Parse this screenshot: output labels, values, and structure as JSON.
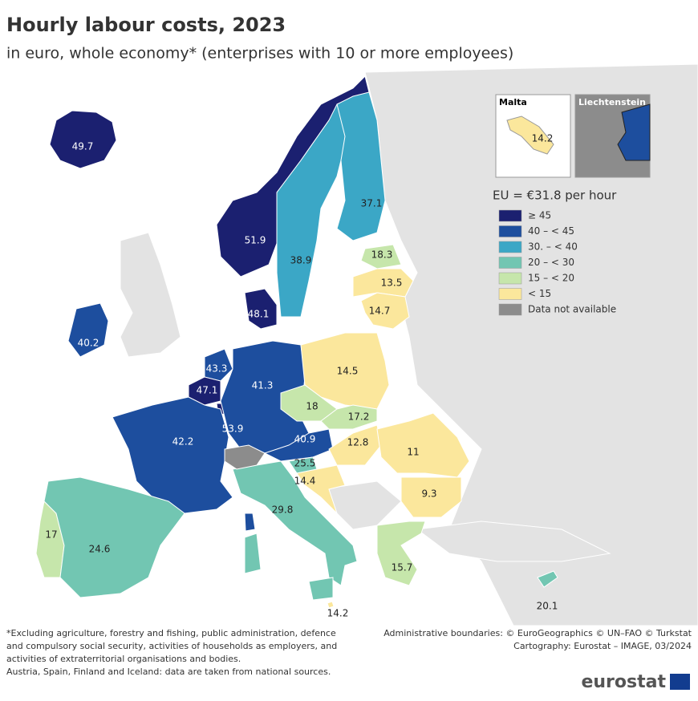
{
  "title": "Hourly labour costs, 2023",
  "subtitle": "in euro, whole economy* (enterprises with 10 or more employees)",
  "regions": [
    {
      "value": 49.7,
      "color": "#1b2070"
    },
    {
      "value": 40.2,
      "color": "#1d4e9e"
    },
    {
      "value": 51.9,
      "color": "#1b2070"
    },
    {
      "value": 38.9,
      "color": "#3ba7c6"
    },
    {
      "value": 37.1,
      "color": "#3ba7c6"
    },
    {
      "value": 18.3,
      "color": "#c6e6ab"
    },
    {
      "value": 13.5,
      "color": "#fbe79c"
    },
    {
      "value": 14.7,
      "color": "#fbe79c"
    },
    {
      "value": 48.1,
      "color": "#1b2070"
    },
    {
      "value": 43.3,
      "color": "#1d4e9e"
    },
    {
      "value": 47.1,
      "color": "#1b2070"
    },
    {
      "value": 53.9,
      "color": "#1b2070"
    },
    {
      "value": 41.3,
      "color": "#1d4e9e"
    },
    {
      "value": 14.5,
      "color": "#fbe79c"
    },
    {
      "value": 18,
      "color": "#c6e6ab"
    },
    {
      "value": 17.2,
      "color": "#c6e6ab"
    },
    {
      "value": 42.2,
      "color": "#1d4e9e"
    },
    {
      "value": 40.9,
      "color": "#1d4e9e"
    },
    {
      "value": 25.5,
      "color": "#72c6b2"
    },
    {
      "value": 14.4,
      "color": "#fbe79c"
    },
    {
      "value": 12.8,
      "color": "#fbe79c"
    },
    {
      "value": 11,
      "color": "#fbe79c"
    },
    {
      "value": 9.3,
      "color": "#fbe79c"
    },
    {
      "value": 29.8,
      "color": "#72c6b2"
    },
    {
      "value": 17,
      "color": "#c6e6ab"
    },
    {
      "value": 24.6,
      "color": "#72c6b2"
    },
    {
      "value": 15.7,
      "color": "#c6e6ab"
    },
    {
      "value": 14.2,
      "color": "#fbe79c"
    },
    {
      "value": 20.1,
      "color": "#72c6b2"
    }
  ],
  "not_available_color": "#8c8c8c",
  "insets": [
    {
      "title": "Malta"
    },
    {
      "title": "Liechtenstein",
      "color": "#1d4e9e"
    }
  ],
  "legend": {
    "title": "EU = €31.8 per hour",
    "items": [
      {
        "label": "≥ 45",
        "color": "#1b2070"
      },
      {
        "label": "40 – < 45",
        "color": "#1d4e9e"
      },
      {
        "label": "30. – < 40",
        "color": "#3ba7c6"
      },
      {
        "label": "20 – < 30",
        "color": "#72c6b2"
      },
      {
        "label": "15 – < 20",
        "color": "#c6e6ab"
      },
      {
        "label": "< 15",
        "color": "#fbe79c"
      },
      {
        "label": "Data not available",
        "color": "#8c8c8c"
      }
    ]
  },
  "footnotes": [
    "*Excluding agriculture, forestry and fishing, public administration, defence",
    "and compulsory social security, activities of households as employers, and",
    "activities of extraterritorial organisations and bodies.",
    "Austria, Spain, Finland and Iceland: data are taken from national sources."
  ],
  "credits": [
    "Administrative boundaries: © EuroGeographics © UN–FAO © Turkstat",
    "Cartography: Eurostat – IMAGE, 03/2024"
  ],
  "logo": "eurostat"
}
